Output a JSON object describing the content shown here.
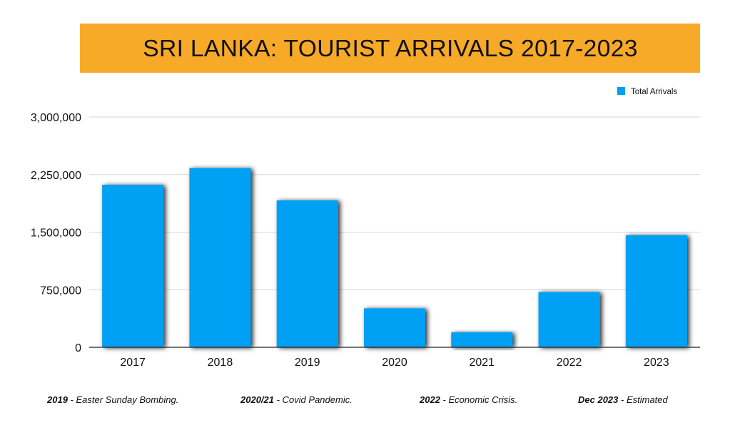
{
  "chart_data": {
    "type": "bar",
    "title": "SRI LANKA: TOURIST ARRIVALS 2017-2023",
    "categories": [
      "2017",
      "2018",
      "2019",
      "2020",
      "2021",
      "2022",
      "2023"
    ],
    "series": [
      {
        "name": "Total Arrivals",
        "values": [
          2116407,
          2333796,
          1913702,
          507704,
          194495,
          719978,
          1460000
        ]
      }
    ],
    "ylim": [
      0,
      3000000
    ],
    "yticks": [
      0,
      750000,
      1500000,
      2250000,
      3000000
    ],
    "ytick_labels": [
      "0",
      "750,000",
      "1,500,000",
      "2,250,000",
      "3,000,000"
    ],
    "xlabel": "",
    "ylabel": "",
    "grid": true,
    "legend_position": "top-right",
    "bar_color": "#00a0f4"
  },
  "notes": [
    {
      "bold": "2019",
      "text": " - Easter Sunday Bombing."
    },
    {
      "bold": "2020/21",
      "text": " - Covid Pandemic."
    },
    {
      "bold": "2022",
      "text": " - Economic Crisis."
    },
    {
      "bold": "Dec 2023",
      "text": " - Estimated"
    }
  ]
}
